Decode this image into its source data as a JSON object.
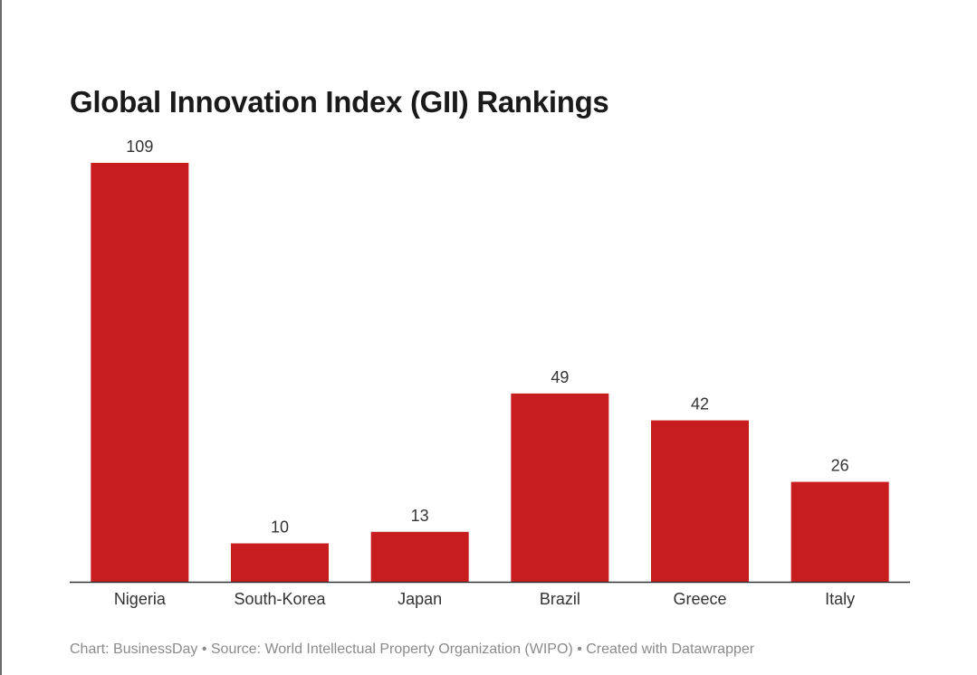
{
  "chart_data": {
    "type": "bar",
    "title": "Global Innovation Index (GII) Rankings",
    "categories": [
      "Nigeria",
      "South-Korea",
      "Japan",
      "Brazil",
      "Greece",
      "Italy"
    ],
    "values": [
      109,
      10,
      13,
      49,
      42,
      26
    ],
    "data_labels": [
      "109",
      "10",
      "13",
      "49",
      "42",
      "26"
    ],
    "ylim": [
      0,
      109
    ],
    "bar_color": "#c71d1f",
    "grid": false
  },
  "footer": {
    "text": "Chart: BusinessDay • Source: World Intellectual Property Organization (WIPO) • Created with Datawrapper"
  }
}
